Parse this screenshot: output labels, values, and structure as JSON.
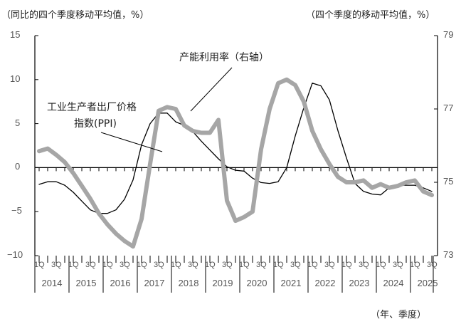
{
  "chart": {
    "left_unit": "（同比的四个季度移动平均值，%）",
    "right_unit": "（四个季度的移动平均值，%）",
    "x_unit": "（年、季度）",
    "annotation_ppi_line1": "工业生产者出厂价格",
    "annotation_ppi_line2": "指数(PPI)",
    "annotation_cap": "产能利用率（右轴）",
    "left_ticks": [
      "15",
      "10",
      "5",
      "0",
      "−5",
      "−10"
    ],
    "right_ticks": [
      "79",
      "77",
      "75",
      "73"
    ],
    "years": [
      "2014",
      "2015",
      "2016",
      "2017",
      "2018",
      "2019",
      "2020",
      "2021",
      "2022",
      "2023",
      "2024",
      "2025"
    ],
    "quarter_labels": [
      "1Q",
      "3Q"
    ]
  },
  "chart_data": {
    "type": "line",
    "title": "",
    "xlabel": "（年、季度）",
    "ylabel": "（同比的四个季度移动平均值，%）",
    "ylabel_right": "（四个季度的移动平均值，%）",
    "ylim": [
      -10,
      15
    ],
    "ylim_right": [
      73,
      79
    ],
    "grid": false,
    "x": [
      "2014Q1",
      "2014Q2",
      "2014Q3",
      "2014Q4",
      "2015Q1",
      "2015Q2",
      "2015Q3",
      "2015Q4",
      "2016Q1",
      "2016Q2",
      "2016Q3",
      "2016Q4",
      "2017Q1",
      "2017Q2",
      "2017Q3",
      "2017Q4",
      "2018Q1",
      "2018Q2",
      "2018Q3",
      "2018Q4",
      "2019Q1",
      "2019Q2",
      "2019Q3",
      "2019Q4",
      "2020Q1",
      "2020Q2",
      "2020Q3",
      "2020Q4",
      "2021Q1",
      "2021Q2",
      "2021Q3",
      "2021Q4",
      "2022Q1",
      "2022Q2",
      "2022Q3",
      "2022Q4",
      "2023Q1",
      "2023Q2",
      "2023Q3",
      "2023Q4",
      "2024Q1",
      "2024Q2",
      "2024Q3",
      "2024Q4",
      "2025Q1",
      "2025Q2",
      "2025Q3"
    ],
    "series": [
      {
        "name": "工业生产者出厂价格指数(PPI)",
        "axis": "left",
        "color": "#000000",
        "values": [
          -1.9,
          -1.6,
          -1.6,
          -2.0,
          -2.8,
          -3.8,
          -4.8,
          -5.2,
          -5.2,
          -4.8,
          -3.6,
          -1.4,
          2.6,
          5.0,
          6.2,
          6.2,
          5.2,
          4.8,
          4.1,
          3.0,
          2.0,
          1.0,
          0.1,
          -0.3,
          -0.4,
          -1.2,
          -1.7,
          -1.8,
          -1.6,
          0.0,
          3.6,
          6.8,
          9.6,
          9.3,
          7.7,
          4.2,
          1.1,
          -1.8,
          -2.7,
          -3.0,
          -3.1,
          -2.3,
          -2.0,
          -2.0,
          -2.0,
          -2.3,
          -2.7
        ]
      },
      {
        "name": "产能利用率（右轴）",
        "axis": "right",
        "color": "#a6a6a6",
        "values": [
          75.85,
          75.92,
          75.75,
          75.55,
          75.25,
          74.9,
          74.55,
          74.15,
          73.85,
          73.6,
          73.4,
          73.25,
          74.0,
          75.5,
          76.95,
          77.05,
          77.0,
          76.55,
          76.4,
          76.35,
          76.35,
          76.7,
          74.5,
          73.95,
          74.05,
          74.2,
          75.9,
          77.0,
          77.7,
          77.8,
          77.65,
          77.2,
          76.4,
          75.9,
          75.5,
          75.15,
          75.0,
          75.0,
          75.05,
          74.85,
          74.95,
          74.85,
          74.9,
          75.0,
          75.05,
          74.75,
          74.65
        ]
      }
    ]
  }
}
